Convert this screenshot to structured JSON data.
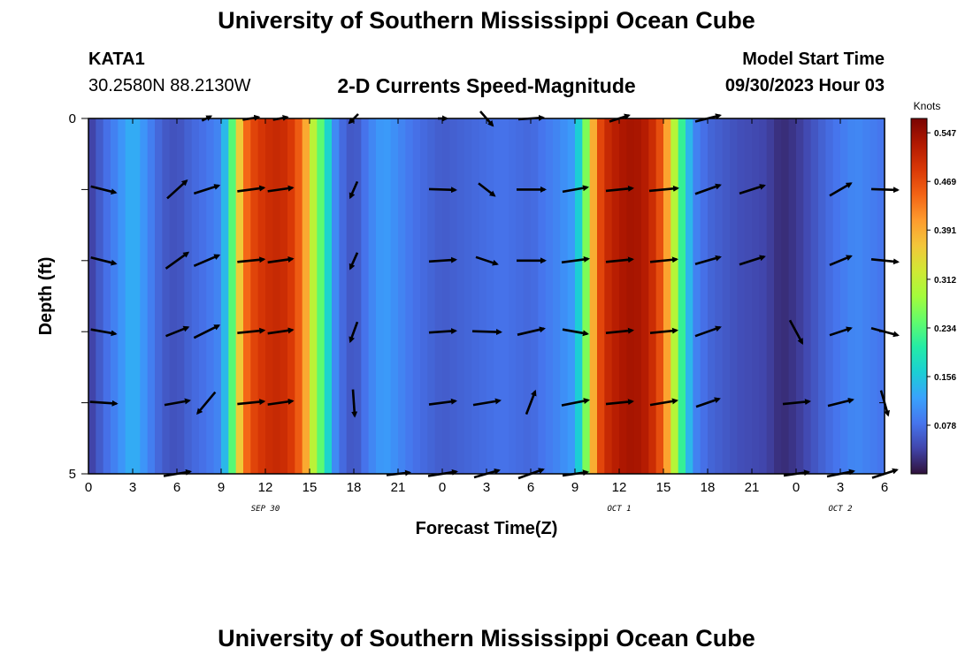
{
  "header": {
    "title": "University of Southern Mississippi Ocean Cube",
    "station": "KATA1",
    "coords": "30.2580N  88.2130W",
    "subtitle": "2-D Currents Speed-Magnitude",
    "model_start_label": "Model Start Time",
    "model_start_time": "09/30/2023 Hour 03"
  },
  "footer": {
    "title": "University of Southern Mississippi Ocean Cube"
  },
  "chart_data": {
    "type": "heatmap",
    "title": "2-D Currents Speed-Magnitude",
    "xlabel": "Forecast Time(Z)",
    "ylabel": "Depth (ft)",
    "x_range_hours": [
      0,
      54
    ],
    "x_tick_values": [
      0,
      3,
      6,
      9,
      12,
      15,
      18,
      21,
      24,
      27,
      30,
      33,
      36,
      39,
      42,
      45,
      48,
      51,
      54
    ],
    "x_tick_labels": [
      "0",
      "3",
      "6",
      "9",
      "12",
      "15",
      "18",
      "21",
      "0",
      "3",
      "6",
      "9",
      "12",
      "15",
      "18",
      "21",
      "0",
      "3",
      "6"
    ],
    "date_labels": [
      {
        "label": "SEP 30",
        "hour": 12
      },
      {
        "label": "OCT 1",
        "hour": 36
      },
      {
        "label": "OCT 2",
        "hour": 51
      }
    ],
    "y_range_ft": [
      0,
      5
    ],
    "y_tick_labels": [
      "0",
      "5"
    ],
    "colorbar": {
      "unit": "Knots",
      "min": 0.0,
      "max": 0.57,
      "ticks": [
        "0.547",
        "0.469",
        "0.391",
        "0.312",
        "0.234",
        "0.156",
        "0.078"
      ],
      "tick_values": [
        0.547,
        0.469,
        0.391,
        0.312,
        0.234,
        0.156,
        0.078
      ],
      "colors": [
        "#30123b",
        "#4145ab",
        "#4675ed",
        "#39a2fc",
        "#1bcfd4",
        "#24eca6",
        "#61fc6c",
        "#a4fc3b",
        "#d1e834",
        "#f3c63a",
        "#fe9b2d",
        "#f36315",
        "#d93806",
        "#b11901",
        "#7a0402"
      ]
    },
    "speed_profile_knots": [
      [
        0,
        0.03
      ],
      [
        1,
        0.07
      ],
      [
        2,
        0.1
      ],
      [
        3,
        0.14
      ],
      [
        4,
        0.1
      ],
      [
        5,
        0.06
      ],
      [
        6,
        0.05
      ],
      [
        7,
        0.07
      ],
      [
        8,
        0.08
      ],
      [
        9,
        0.1
      ],
      [
        9.6,
        0.2
      ],
      [
        10,
        0.3
      ],
      [
        10.5,
        0.42
      ],
      [
        11,
        0.47
      ],
      [
        12,
        0.5
      ],
      [
        13,
        0.51
      ],
      [
        14,
        0.48
      ],
      [
        14.6,
        0.42
      ],
      [
        15,
        0.35
      ],
      [
        15.5,
        0.26
      ],
      [
        16,
        0.22
      ],
      [
        16.5,
        0.12
      ],
      [
        17,
        0.08
      ],
      [
        18,
        0.05
      ],
      [
        19,
        0.09
      ],
      [
        20,
        0.12
      ],
      [
        21,
        0.1
      ],
      [
        22,
        0.08
      ],
      [
        24,
        0.06
      ],
      [
        26,
        0.07
      ],
      [
        28,
        0.08
      ],
      [
        30,
        0.07
      ],
      [
        32,
        0.1
      ],
      [
        33,
        0.12
      ],
      [
        33.6,
        0.22
      ],
      [
        34,
        0.33
      ],
      [
        34.5,
        0.45
      ],
      [
        35,
        0.5
      ],
      [
        36,
        0.53
      ],
      [
        37,
        0.54
      ],
      [
        38,
        0.52
      ],
      [
        39,
        0.45
      ],
      [
        39.6,
        0.33
      ],
      [
        40,
        0.25
      ],
      [
        40.5,
        0.18
      ],
      [
        41,
        0.1
      ],
      [
        42,
        0.07
      ],
      [
        44,
        0.05
      ],
      [
        46,
        0.04
      ],
      [
        47,
        0.02
      ],
      [
        48,
        0.03
      ],
      [
        49,
        0.05
      ],
      [
        50,
        0.07
      ],
      [
        52,
        0.1
      ],
      [
        54,
        0.08
      ]
    ],
    "vectors_hours": [
      1,
      4,
      6,
      8,
      11,
      13,
      18,
      21,
      24,
      27,
      30,
      33,
      36,
      39,
      42,
      45,
      48,
      51,
      54
    ],
    "vector_depths_ft": [
      0,
      1,
      2,
      3,
      4,
      5
    ],
    "vectors_dxdy": [
      [
        [
          0,
          0
        ],
        [
          0,
          0
        ],
        [
          0,
          0
        ],
        [
          10,
          -5
        ],
        [
          18,
          -3
        ],
        [
          16,
          -3
        ],
        [
          -10,
          10
        ],
        [
          0,
          0
        ],
        [
          10,
          0
        ],
        [
          14,
          16
        ],
        [
          28,
          -2
        ],
        [
          0,
          0
        ],
        [
          22,
          -7
        ],
        [
          0,
          0
        ],
        [
          28,
          -7
        ],
        [
          0,
          0
        ],
        [
          0,
          0
        ],
        [
          0,
          0
        ],
        [
          0,
          0
        ]
      ],
      [
        [
          28,
          7
        ],
        [
          0,
          0
        ],
        [
          22,
          -20
        ],
        [
          28,
          -9
        ],
        [
          30,
          -4
        ],
        [
          28,
          -4
        ],
        [
          -8,
          18
        ],
        [
          0,
          0
        ],
        [
          30,
          1
        ],
        [
          18,
          14
        ],
        [
          32,
          0
        ],
        [
          28,
          -5
        ],
        [
          30,
          -3
        ],
        [
          32,
          -3
        ],
        [
          28,
          -10
        ],
        [
          28,
          -9
        ],
        [
          0,
          0
        ],
        [
          24,
          -14
        ],
        [
          30,
          1
        ]
      ],
      [
        [
          28,
          7
        ],
        [
          0,
          0
        ],
        [
          25,
          -18
        ],
        [
          28,
          -12
        ],
        [
          30,
          -3
        ],
        [
          28,
          -4
        ],
        [
          -8,
          18
        ],
        [
          0,
          0
        ],
        [
          30,
          -2
        ],
        [
          24,
          8
        ],
        [
          32,
          0
        ],
        [
          30,
          -4
        ],
        [
          30,
          -3
        ],
        [
          30,
          -3
        ],
        [
          28,
          -8
        ],
        [
          28,
          -9
        ],
        [
          0,
          0
        ],
        [
          24,
          -10
        ],
        [
          30,
          3
        ]
      ],
      [
        [
          28,
          5
        ],
        [
          0,
          0
        ],
        [
          25,
          -10
        ],
        [
          28,
          -14
        ],
        [
          30,
          -3
        ],
        [
          28,
          -4
        ],
        [
          -8,
          22
        ],
        [
          0,
          0
        ],
        [
          30,
          -2
        ],
        [
          32,
          1
        ],
        [
          30,
          -7
        ],
        [
          28,
          5
        ],
        [
          30,
          -3
        ],
        [
          30,
          -3
        ],
        [
          28,
          -10
        ],
        [
          0,
          0
        ],
        [
          14,
          26
        ],
        [
          24,
          -8
        ],
        [
          30,
          8
        ]
      ],
      [
        [
          30,
          2
        ],
        [
          0,
          0
        ],
        [
          28,
          -5
        ],
        [
          -20,
          24
        ],
        [
          30,
          -3
        ],
        [
          28,
          -4
        ],
        [
          2,
          30
        ],
        [
          0,
          0
        ],
        [
          30,
          -4
        ],
        [
          30,
          -5
        ],
        [
          10,
          -26
        ],
        [
          30,
          -6
        ],
        [
          30,
          -3
        ],
        [
          30,
          -5
        ],
        [
          26,
          -9
        ],
        [
          0,
          0
        ],
        [
          30,
          -3
        ],
        [
          28,
          -7
        ],
        [
          8,
          28
        ]
      ],
      [
        [
          0,
          0
        ],
        [
          0,
          0
        ],
        [
          30,
          -5
        ],
        [
          0,
          0
        ],
        [
          0,
          0
        ],
        [
          0,
          0
        ],
        [
          0,
          0
        ],
        [
          26,
          -3
        ],
        [
          32,
          -5
        ],
        [
          28,
          -8
        ],
        [
          28,
          -10
        ],
        [
          28,
          -4
        ],
        [
          0,
          0
        ],
        [
          0,
          0
        ],
        [
          0,
          0
        ],
        [
          0,
          0
        ],
        [
          28,
          -4
        ],
        [
          30,
          -6
        ],
        [
          28,
          -9
        ]
      ]
    ]
  }
}
